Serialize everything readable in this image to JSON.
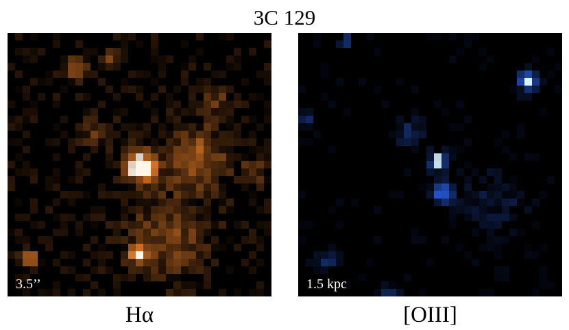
{
  "title": "3C 129",
  "panels": {
    "left": {
      "caption": "Hα",
      "scale_label": "3.5’’",
      "palette": "orange",
      "colors": {
        "glow": "#ff8a2a",
        "core": "#fff6e8"
      }
    },
    "right": {
      "caption": "[OIII]",
      "scale_label": "1.5 kpc",
      "palette": "blue",
      "colors": {
        "glow": "#2d6bff",
        "core": "#d8f4ff"
      }
    }
  }
}
